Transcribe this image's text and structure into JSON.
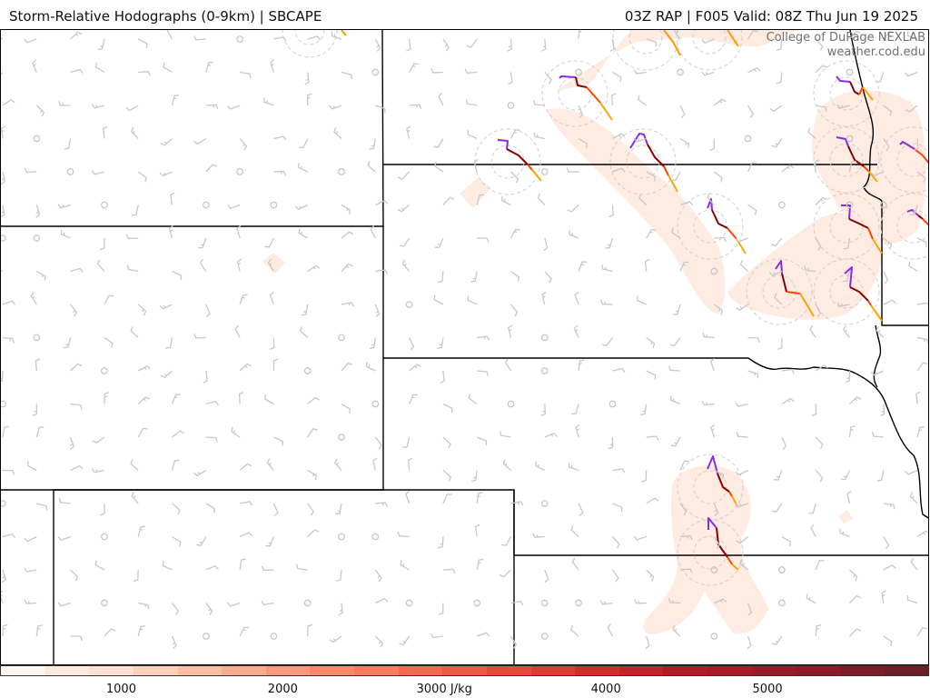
{
  "header": {
    "title_left": "Storm-Relative Hodographs (0-9km) | SBCAPE",
    "title_right": "03Z RAP | F005 Valid: 08Z Thu Jun 19 2025"
  },
  "credit": {
    "line1": "College of DuPage NEXLAB",
    "line2": "weather.cod.edu"
  },
  "colorbar": {
    "colors": [
      "#fff5f0",
      "#fee9df",
      "#fee0d2",
      "#fdd0bc",
      "#fcbea5",
      "#fcab8f",
      "#fc9a7f",
      "#fb8a6a",
      "#f97b60",
      "#f6694f",
      "#f15845",
      "#ea4839",
      "#e23832",
      "#d42a2c",
      "#c6202a",
      "#b61a26",
      "#a71b27",
      "#981b27",
      "#8c1b27",
      "#7d1c26",
      "#6e1e25"
    ],
    "ticks": [
      {
        "label": "1000",
        "value": 1000
      },
      {
        "label": "2000",
        "value": 2000
      },
      {
        "label": "3000 J/kg",
        "value": 3000
      },
      {
        "label": "4000",
        "value": 4000
      },
      {
        "label": "5000",
        "value": 5000
      }
    ],
    "range": [
      250,
      6000
    ]
  },
  "icons": {
    "hodograph": "hodograph-icon",
    "wind_barb": "wind-barb-icon",
    "calm_circle": "calm-wind-icon"
  }
}
